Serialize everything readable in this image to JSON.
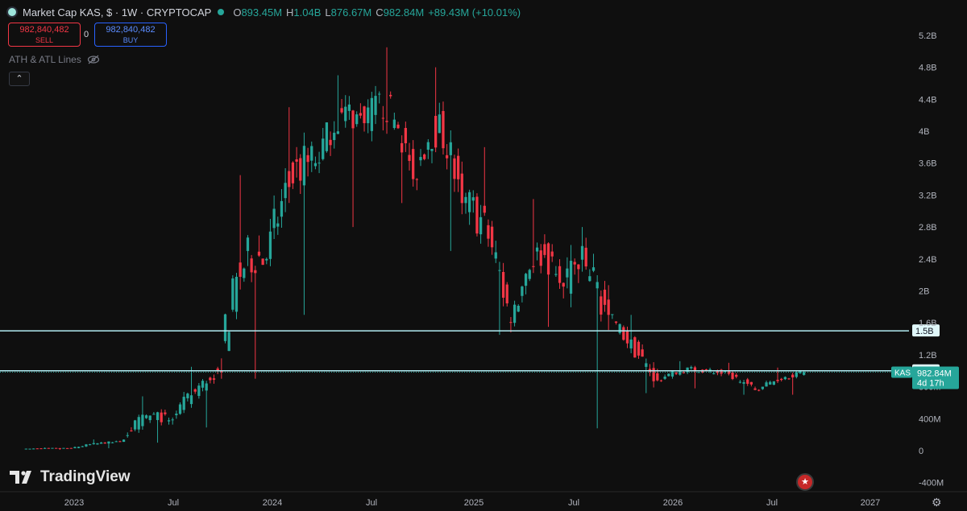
{
  "header": {
    "title": "Market Cap KAS, $ · 1W · CRYPTOCAP",
    "open_label": "O",
    "open": "893.45M",
    "high_label": "H",
    "high": "1.04B",
    "low_label": "L",
    "low": "876.67M",
    "close_label": "C",
    "close": "982.84M",
    "change": "+89.43M (+10.01%)"
  },
  "trade": {
    "sell_price": "982,840,482",
    "sell_label": "SELL",
    "spread": "0",
    "buy_price": "982,840,482",
    "buy_label": "BUY"
  },
  "indicator": {
    "label": "ATH & ATL Lines",
    "icon": "eye-off-icon"
  },
  "brand": {
    "name": "TradingView"
  },
  "colors": {
    "up": "#26a69a",
    "down": "#f23645",
    "background": "#0f0f0f",
    "hline": "#b2ebf2"
  },
  "chart_data": {
    "type": "candlestick",
    "title": "Market Cap KAS, $ · 1W · CRYPTOCAP",
    "unit": "USD",
    "ylim": [
      -400000000,
      5200000000
    ],
    "y_ticks": [
      "5.2B",
      "4.8B",
      "4.4B",
      "4B",
      "3.6B",
      "3.2B",
      "2.8B",
      "2.4B",
      "2B",
      "1.6B",
      "1.2B",
      "800M",
      "400M",
      "0",
      "-400M"
    ],
    "x_ticks": [
      "2023",
      "Jul",
      "2024",
      "Jul",
      "2025",
      "Jul",
      "2026",
      "Jul",
      "2027"
    ],
    "horizontal_lines": [
      {
        "label": "1.5B",
        "value": 1500000000
      },
      {
        "label": "1B",
        "value": 1000000000
      }
    ],
    "last_price": {
      "symbol": "KAS",
      "value": "982.84M",
      "countdown": "4d 17h"
    },
    "series": [
      {
        "period": "2022-Q4",
        "open": 20000000,
        "high": 40000000,
        "low": 10000000,
        "close": 30000000
      },
      {
        "period": "2023-Q1",
        "open": 30000000,
        "high": 140000000,
        "low": 30000000,
        "close": 110000000
      },
      {
        "period": "2023-Q2",
        "open": 110000000,
        "high": 680000000,
        "low": 100000000,
        "close": 380000000
      },
      {
        "period": "2023-Q3",
        "open": 380000000,
        "high": 1050000000,
        "low": 290000000,
        "close": 1000000000
      },
      {
        "period": "2023-Q4",
        "open": 1000000000,
        "high": 3450000000,
        "low": 900000000,
        "close": 2400000000
      },
      {
        "period": "2024-Q1",
        "open": 2400000000,
        "high": 4300000000,
        "low": 1700000000,
        "close": 3600000000
      },
      {
        "period": "2024-Q2",
        "open": 3600000000,
        "high": 4700000000,
        "low": 2800000000,
        "close": 4100000000
      },
      {
        "period": "2024-Q3",
        "open": 4100000000,
        "high": 5050000000,
        "low": 3100000000,
        "close": 3400000000
      },
      {
        "period": "2024-Q4",
        "open": 3400000000,
        "high": 4800000000,
        "low": 2500000000,
        "close": 3100000000
      },
      {
        "period": "2025-Q1",
        "open": 3100000000,
        "high": 3800000000,
        "low": 1450000000,
        "close": 1600000000
      },
      {
        "period": "2025-Q2",
        "open": 1600000000,
        "high": 3150000000,
        "low": 1550000000,
        "close": 2100000000
      },
      {
        "period": "2025-Q3",
        "open": 2100000000,
        "high": 2800000000,
        "low": 280000000,
        "close": 1700000000
      },
      {
        "period": "2025-Q4",
        "open": 1700000000,
        "high": 1700000000,
        "low": 720000000,
        "close": 880000000
      },
      {
        "period": "2026-Q1",
        "open": 880000000,
        "high": 1120000000,
        "low": 780000000,
        "close": 1000000000
      },
      {
        "period": "2026-Q2",
        "open": 1000000000,
        "high": 1100000000,
        "low": 700000000,
        "close": 760000000
      },
      {
        "period": "2026-Q3",
        "open": 760000000,
        "high": 1040000000,
        "low": 700000000,
        "close": 982840000
      }
    ]
  }
}
